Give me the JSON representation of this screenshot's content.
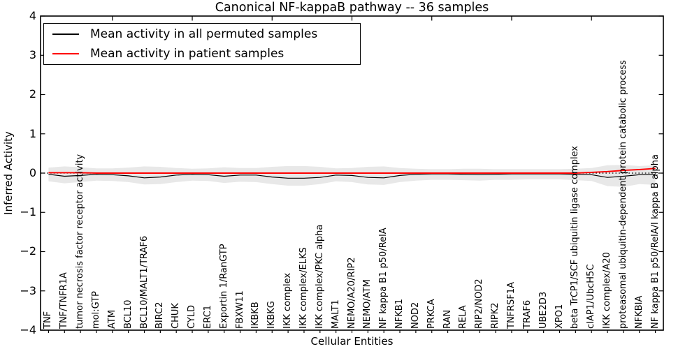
{
  "title": "Canonical NF-kappaB pathway -- 36 samples",
  "axes": {
    "xlabel": "Cellular Entities",
    "ylabel": "Inferred Activity",
    "ytick_labels": [
      "4",
      "3",
      "2",
      "1",
      "0",
      "−1",
      "−2",
      "−3",
      "−4"
    ]
  },
  "legend": {
    "entries": [
      {
        "label": "Mean activity in all permuted samples",
        "color": "#000000"
      },
      {
        "label": "Mean activity in patient samples",
        "color": "#ff0000"
      }
    ]
  },
  "chart_data": {
    "type": "line",
    "title": "Canonical NF-kappaB pathway -- 36 samples",
    "xlabel": "Cellular Entities",
    "ylabel": "Inferred Activity",
    "ylim": [
      -4,
      4
    ],
    "yticks": [
      4,
      3,
      2,
      1,
      0,
      -1,
      -2,
      -3,
      -4
    ],
    "grid": false,
    "legend_position": "upper left",
    "zero_reference_line": 0,
    "categories": [
      "TNF",
      "TNF/TNFR1A",
      "tumor necrosis factor receptor activity",
      "mol:GTP",
      "ATM",
      "BCL10",
      "BCL10/MALT1/TRAF6",
      "BIRC2",
      "CHUK",
      "CYLD",
      "ERC1",
      "Exportin 1/RanGTP",
      "FBXW11",
      "IKBKB",
      "IKBKG",
      "IKK complex",
      "IKK complex/ELKS",
      "IKK complex/PKC alpha",
      "MALT1",
      "NEMO/A20/RIP2",
      "NEMO/ATM",
      "NF kappa B1 p50/RelA",
      "NFKB1",
      "NOD2",
      "PRKCA",
      "RAN",
      "RELA",
      "RIP2/NOD2",
      "RIPK2",
      "TNFRSF1A",
      "TRAF6",
      "UBE2D3",
      "XPO1",
      "beta TrCP1/SCF ubiquitin ligase complex",
      "cIAP1/UbcH5C",
      "IKK complex/A20",
      "proteasomal ubiquitin-dependent protein catabolic process",
      "NFKBIA",
      "NF kappa B1 p50/RelA/I kappa B alpha"
    ],
    "series": [
      {
        "name": "Mean activity in all permuted samples",
        "color": "#000000",
        "width": 1.2,
        "values": [
          -0.03,
          -0.08,
          -0.06,
          -0.03,
          -0.04,
          -0.07,
          -0.12,
          -0.1,
          -0.05,
          -0.03,
          -0.04,
          -0.08,
          -0.05,
          -0.05,
          -0.1,
          -0.13,
          -0.13,
          -0.11,
          -0.05,
          -0.06,
          -0.11,
          -0.12,
          -0.06,
          -0.03,
          -0.02,
          -0.02,
          -0.03,
          -0.04,
          -0.03,
          -0.02,
          -0.02,
          -0.02,
          -0.02,
          -0.03,
          -0.04,
          -0.11,
          -0.08,
          -0.04,
          -0.03
        ]
      },
      {
        "name": "Mean activity in patient samples",
        "color": "#ff0000",
        "width": 1.9,
        "values": [
          0.01,
          0.01,
          0.01,
          0.0,
          0.0,
          0.0,
          0.0,
          0.0,
          0.0,
          0.0,
          0.0,
          0.0,
          0.0,
          0.0,
          0.0,
          0.0,
          0.0,
          0.0,
          0.0,
          0.0,
          0.0,
          0.0,
          0.0,
          0.0,
          0.0,
          0.0,
          0.0,
          0.0,
          0.0,
          0.0,
          0.0,
          0.0,
          0.0,
          0.0,
          0.02,
          0.04,
          0.07,
          0.09,
          0.12
        ]
      }
    ],
    "band": {
      "name": "permuted activity range",
      "color": "#e8e8e8",
      "upper": [
        0.14,
        0.17,
        0.15,
        0.12,
        0.12,
        0.14,
        0.17,
        0.16,
        0.13,
        0.11,
        0.12,
        0.15,
        0.13,
        0.13,
        0.16,
        0.18,
        0.18,
        0.16,
        0.12,
        0.13,
        0.16,
        0.17,
        0.13,
        0.11,
        0.1,
        0.1,
        0.11,
        0.11,
        0.1,
        0.1,
        0.1,
        0.1,
        0.1,
        0.11,
        0.13,
        0.2,
        0.21,
        0.18,
        0.2
      ],
      "lower": [
        -0.21,
        -0.26,
        -0.23,
        -0.19,
        -0.2,
        -0.23,
        -0.29,
        -0.28,
        -0.23,
        -0.19,
        -0.2,
        -0.25,
        -0.22,
        -0.23,
        -0.28,
        -0.32,
        -0.32,
        -0.28,
        -0.21,
        -0.23,
        -0.29,
        -0.3,
        -0.23,
        -0.19,
        -0.17,
        -0.17,
        -0.18,
        -0.19,
        -0.17,
        -0.17,
        -0.16,
        -0.16,
        -0.16,
        -0.18,
        -0.2,
        -0.33,
        -0.35,
        -0.28,
        -0.3
      ]
    }
  }
}
